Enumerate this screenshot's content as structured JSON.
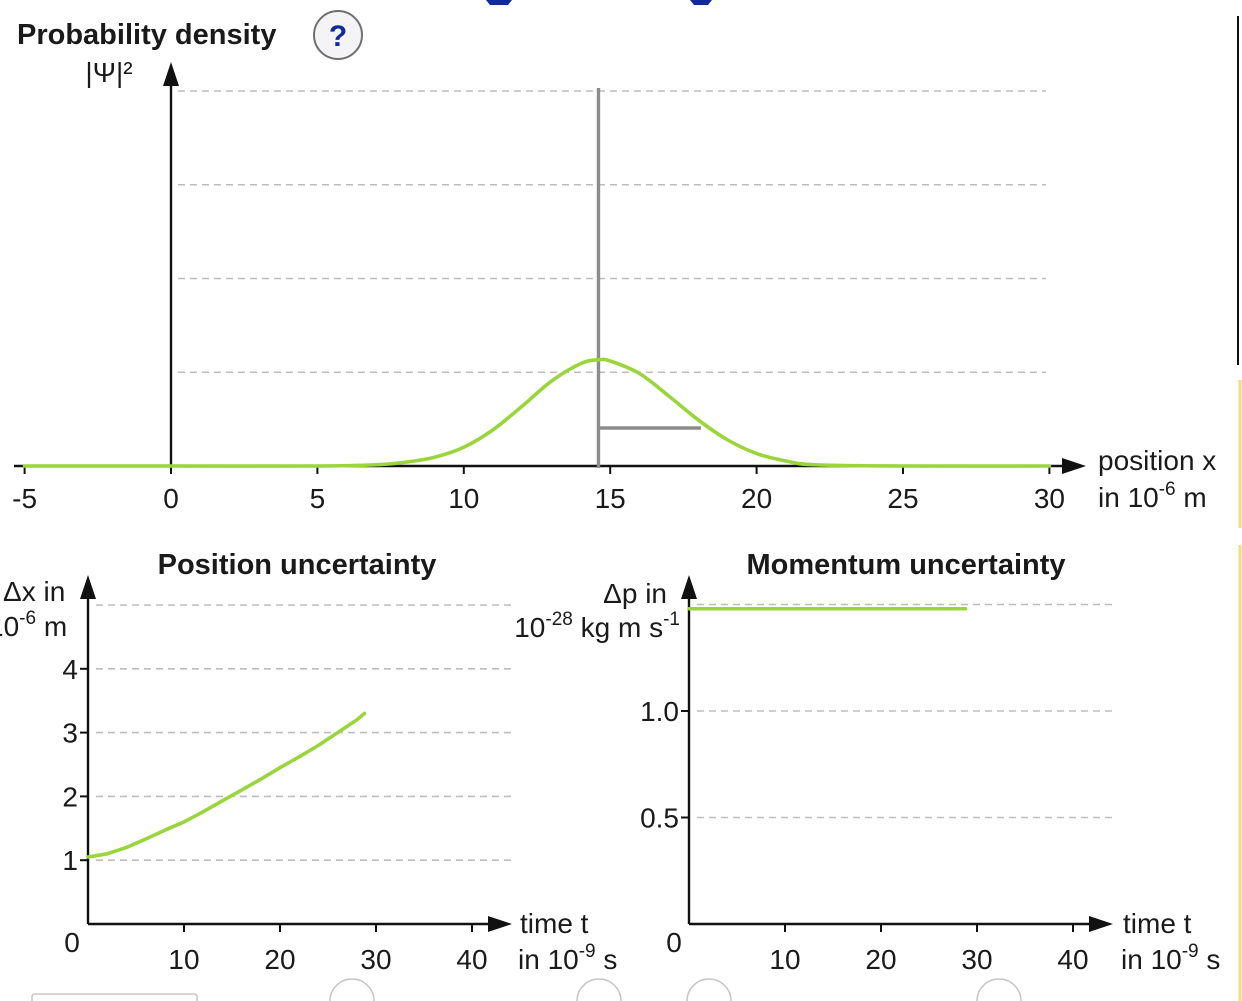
{
  "help": {
    "label": "?"
  },
  "chart_data": [
    {
      "type": "line",
      "title": "Probability density",
      "ylabel": "|Ψ|²",
      "xlabel": [
        "position x",
        "in 10",
        "-6",
        " m"
      ],
      "xlim": [
        -5,
        30
      ],
      "xticks": [
        -5,
        0,
        5,
        10,
        15,
        20,
        25,
        30
      ],
      "yticks_shown": false,
      "grid": true,
      "peak_marker_x": 14.6,
      "half_width_marker": {
        "from": 14.6,
        "to": 18.1
      },
      "series": [
        {
          "x": [
            -5,
            0,
            5,
            7,
            8,
            9,
            10,
            11,
            12,
            13,
            14,
            14.6,
            15,
            16,
            17,
            18,
            19,
            20,
            21,
            22,
            25,
            30
          ],
          "y": [
            0,
            0,
            0,
            0.01,
            0.03,
            0.07,
            0.15,
            0.29,
            0.48,
            0.68,
            0.82,
            0.85,
            0.84,
            0.74,
            0.56,
            0.37,
            0.21,
            0.1,
            0.04,
            0.01,
            0,
            0
          ]
        }
      ]
    },
    {
      "type": "line",
      "title": "Position uncertainty",
      "ylabel": [
        "Δx in",
        "10",
        "-6",
        " m"
      ],
      "xlabel": [
        "time t",
        "in 10",
        "-9",
        " s"
      ],
      "xlim": [
        0,
        40
      ],
      "ylim": [
        0,
        5
      ],
      "xticks": [
        10,
        20,
        30,
        40
      ],
      "yticks": [
        1,
        2,
        3,
        4
      ],
      "origin_label": "0",
      "grid": true,
      "series": [
        {
          "x": [
            0,
            2,
            4,
            6,
            8,
            10,
            12,
            14,
            16,
            18,
            20,
            22,
            24,
            26,
            28,
            28.8
          ],
          "y": [
            1.05,
            1.1,
            1.2,
            1.33,
            1.47,
            1.6,
            1.76,
            1.93,
            2.1,
            2.27,
            2.45,
            2.62,
            2.8,
            3.0,
            3.2,
            3.3
          ]
        }
      ]
    },
    {
      "type": "line",
      "title": "Momentum uncertainty",
      "ylabel": [
        "Δp in",
        "10",
        "-28",
        " kg m s",
        "-1"
      ],
      "xlabel": [
        "time t",
        "in 10",
        "-9",
        " s"
      ],
      "xlim": [
        0,
        40
      ],
      "ylim": [
        0,
        1.5
      ],
      "xticks": [
        10,
        20,
        30,
        40
      ],
      "yticks": [
        0.5,
        1.0
      ],
      "ytick_labels": [
        "0.5",
        "1.0"
      ],
      "origin_label": "0",
      "grid": true,
      "series": [
        {
          "x": [
            0,
            28.8
          ],
          "y": [
            1.48,
            1.48
          ]
        }
      ]
    }
  ]
}
